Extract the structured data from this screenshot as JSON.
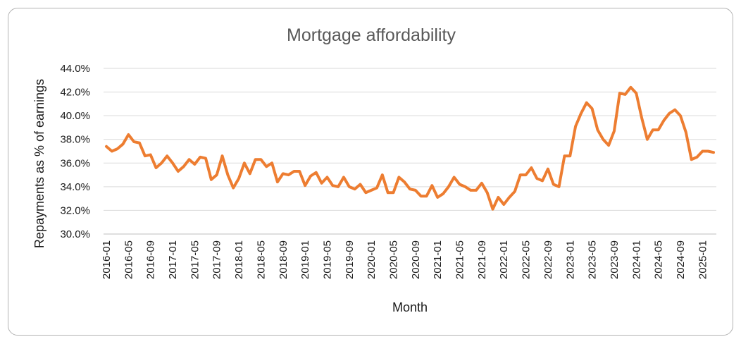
{
  "chart_data": {
    "type": "line",
    "title": "Mortgage affordability",
    "xlabel": "Month",
    "ylabel": "Repayments as % of earnings",
    "ylim": [
      30,
      44
    ],
    "yticks": [
      "30.0%",
      "32.0%",
      "34.0%",
      "36.0%",
      "38.0%",
      "40.0%",
      "42.0%",
      "44.0%"
    ],
    "xticks": [
      "2016-01",
      "2016-05",
      "2016-09",
      "2017-01",
      "2017-05",
      "2017-09",
      "2018-01",
      "2018-05",
      "2018-09",
      "2019-01",
      "2019-05",
      "2019-09",
      "2020-01",
      "2020-05",
      "2020-09",
      "2021-01",
      "2021-05",
      "2021-09",
      "2022-01",
      "2022-05",
      "2022-09",
      "2023-01",
      "2023-05",
      "2023-09",
      "2024-01",
      "2024-05",
      "2024-09",
      "2025-01"
    ],
    "grid": "horizontal",
    "legend": "none",
    "color": "#ed7d31",
    "series": [
      {
        "x_start": "2016-01",
        "values": [
          37.4,
          37.0,
          37.2,
          37.6,
          38.4,
          37.8,
          37.7,
          36.6,
          36.7,
          35.6,
          36.0,
          36.6,
          36.0,
          35.3,
          35.7,
          36.3,
          35.9,
          36.5,
          36.4,
          34.6,
          35.0,
          36.6,
          35.0,
          33.9,
          34.7,
          36.0,
          35.1,
          36.3,
          36.3,
          35.7,
          36.0,
          34.4,
          35.1,
          35.0,
          35.3,
          35.3,
          34.1,
          34.9,
          35.2,
          34.3,
          34.8,
          34.1,
          34.0,
          34.8,
          34.0,
          33.8,
          34.2,
          33.5,
          33.7,
          33.9,
          35.0,
          33.5,
          33.5,
          34.8,
          34.4,
          33.8,
          33.7,
          33.2,
          33.2,
          34.1,
          33.1,
          33.4,
          34.0,
          34.8,
          34.2,
          34.0,
          33.7,
          33.7,
          34.3,
          33.5,
          32.1,
          33.1,
          32.5,
          33.1,
          33.6,
          35.0,
          35.0,
          35.6,
          34.7,
          34.5,
          35.5,
          34.2,
          34.0,
          36.6,
          36.6,
          39.1,
          40.2,
          41.1,
          40.6,
          38.8,
          38.0,
          37.5,
          38.7,
          41.9,
          41.8,
          42.4,
          41.9,
          39.8,
          38.0,
          38.8,
          38.8,
          39.6,
          40.2,
          40.5,
          40.0,
          38.6,
          36.3,
          36.5,
          37.0,
          37.0,
          36.9
        ]
      }
    ]
  }
}
